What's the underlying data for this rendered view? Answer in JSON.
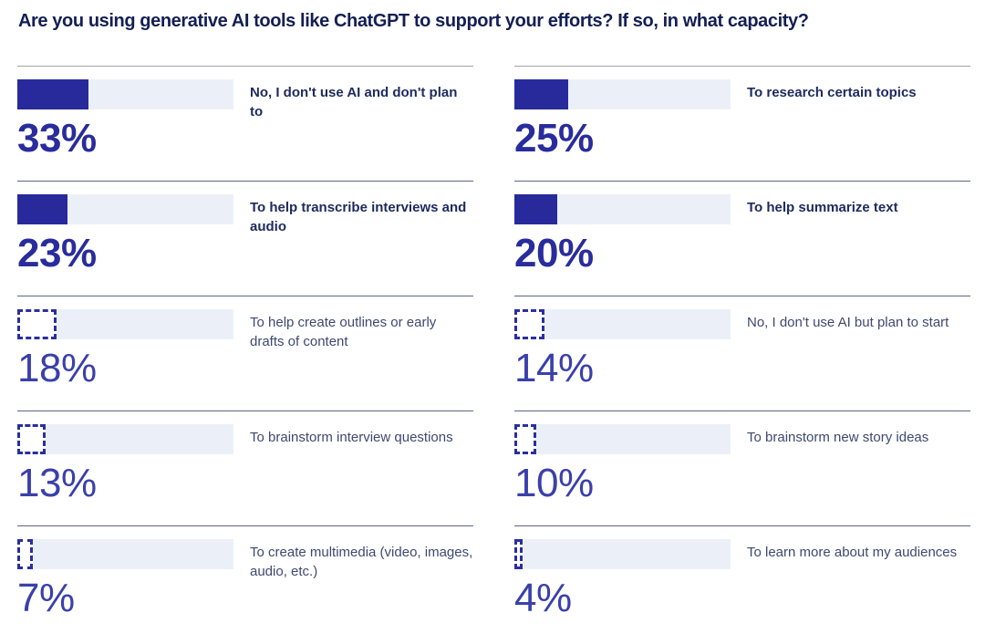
{
  "title": "Are you using generative AI tools like ChatGPT to support your efforts? If so, in what capacity?",
  "colors": {
    "accent_bar": "#282A9C",
    "bar_track": "#EBF0F8",
    "dashed_bar_border": "#2A2F9E",
    "dashed_bar_fill": "#FFFFFF",
    "title_text": "#131F54",
    "label_bold": "#1D2A5E",
    "label_regular": "#3D4970",
    "value_bold": "#292C9C",
    "value_light": "#3A40AA",
    "divider_first": "#A3A2AB",
    "divider_rest": "#5D6486"
  },
  "chart_data": {
    "type": "bar",
    "orientation": "horizontal",
    "title": "Are you using generative AI tools like ChatGPT to support your efforts? If so, in what capacity?",
    "xlabel": "",
    "ylabel": "",
    "value_unit": "percent",
    "axis_range": [
      0,
      100
    ],
    "grid": false,
    "legend": false,
    "bar_style_note": "top two rows of each column use solid filled bars and bold text; remaining rows use dashed-outline bars and light text",
    "categories": [
      "No, I don't use AI and don't plan to",
      "To research certain topics",
      "To help transcribe interviews and audio",
      "To help summarize text",
      "To help create outlines or early drafts of content",
      "No, I don't use AI but plan to start",
      "To brainstorm interview questions",
      "To brainstorm new story ideas",
      "To create multimedia (video, images, audio, etc.)",
      "To learn more about my audiences"
    ],
    "values": [
      33,
      25,
      23,
      20,
      18,
      14,
      13,
      10,
      7,
      4
    ],
    "columns": [
      {
        "items": [
          {
            "label": "No, I don't use AI and don't plan to",
            "value": 33,
            "value_label": "33%",
            "bar_style": "solid",
            "emphasis": true
          },
          {
            "label": "To help transcribe interviews and audio",
            "value": 23,
            "value_label": "23%",
            "bar_style": "solid",
            "emphasis": true
          },
          {
            "label": "To help create outlines or early drafts of content",
            "value": 18,
            "value_label": "18%",
            "bar_style": "dashed",
            "emphasis": false
          },
          {
            "label": "To brainstorm interview questions",
            "value": 13,
            "value_label": "13%",
            "bar_style": "dashed",
            "emphasis": false
          },
          {
            "label": "To create multimedia (video, images, audio, etc.)",
            "value": 7,
            "value_label": "7%",
            "bar_style": "dashed",
            "emphasis": false
          }
        ]
      },
      {
        "items": [
          {
            "label": "To research certain topics",
            "value": 25,
            "value_label": "25%",
            "bar_style": "solid",
            "emphasis": true
          },
          {
            "label": "To help summarize text",
            "value": 20,
            "value_label": "20%",
            "bar_style": "solid",
            "emphasis": true
          },
          {
            "label": "No, I don't use AI but plan to start",
            "value": 14,
            "value_label": "14%",
            "bar_style": "dashed",
            "emphasis": false
          },
          {
            "label": "To brainstorm new story ideas",
            "value": 10,
            "value_label": "10%",
            "bar_style": "dashed",
            "emphasis": false
          },
          {
            "label": "To learn more about my audiences",
            "value": 4,
            "value_label": "4%",
            "bar_style": "dashed",
            "emphasis": false
          }
        ]
      }
    ]
  }
}
